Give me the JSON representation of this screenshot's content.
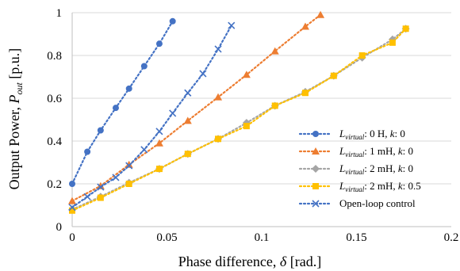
{
  "chart_data": {
    "type": "line",
    "xlabel": "Phase difference, δ [rad.]",
    "ylabel": "Output Power, Pout [p.u.]",
    "xlim": [
      0,
      0.2
    ],
    "ylim": [
      0,
      1
    ],
    "x_ticks": [
      "0",
      "0.05",
      "0.1",
      "0.15",
      "0.2"
    ],
    "y_ticks": [
      "0",
      "0.2",
      "0.4",
      "0.6",
      "0.8",
      "1"
    ],
    "x_tick_values": [
      0,
      0.05,
      0.1,
      0.15,
      0.2
    ],
    "y_tick_values": [
      0,
      0.2,
      0.4,
      0.6,
      0.8,
      1
    ],
    "grid": "horizontal",
    "legend_position": "bottom-right",
    "series": [
      {
        "name": "Lvirtual: 0 H, k: 0",
        "color": "#4472C4",
        "marker": "circle",
        "x": [
          0.0,
          0.008,
          0.015,
          0.023,
          0.03,
          0.038,
          0.046,
          0.053
        ],
        "y": [
          0.2,
          0.35,
          0.45,
          0.555,
          0.645,
          0.75,
          0.855,
          0.96
        ]
      },
      {
        "name": "Lvirtual: 1 mH, k: 0",
        "color": "#ED7D31",
        "marker": "triangle",
        "x": [
          0.0,
          0.015,
          0.03,
          0.046,
          0.061,
          0.077,
          0.092,
          0.107,
          0.123,
          0.131
        ],
        "y": [
          0.12,
          0.19,
          0.29,
          0.39,
          0.495,
          0.605,
          0.71,
          0.82,
          0.935,
          0.99
        ]
      },
      {
        "name": "Lvirtual: 2 mH, k: 0",
        "color": "#A5A5A5",
        "marker": "diamond",
        "x": [
          0.0,
          0.015,
          0.03,
          0.046,
          0.061,
          0.077,
          0.092,
          0.107,
          0.123,
          0.138,
          0.153,
          0.169,
          0.176
        ],
        "y": [
          0.08,
          0.14,
          0.205,
          0.27,
          0.34,
          0.41,
          0.485,
          0.565,
          0.63,
          0.705,
          0.79,
          0.875,
          0.925
        ]
      },
      {
        "name": "Lvirtual: 2 mH, k: 0.5",
        "color": "#FFC000",
        "marker": "square",
        "x": [
          0.0,
          0.015,
          0.03,
          0.046,
          0.061,
          0.077,
          0.092,
          0.107,
          0.123,
          0.138,
          0.153,
          0.169,
          0.176
        ],
        "y": [
          0.075,
          0.135,
          0.2,
          0.27,
          0.34,
          0.41,
          0.47,
          0.565,
          0.625,
          0.705,
          0.8,
          0.86,
          0.925
        ]
      },
      {
        "name": "Open-loop control",
        "color": "#4472C4",
        "marker": "x",
        "x": [
          0.0,
          0.008,
          0.015,
          0.023,
          0.03,
          0.038,
          0.046,
          0.053,
          0.061,
          0.069,
          0.077,
          0.084
        ],
        "y": [
          0.09,
          0.14,
          0.185,
          0.23,
          0.285,
          0.36,
          0.445,
          0.53,
          0.625,
          0.715,
          0.83,
          0.94
        ]
      }
    ]
  },
  "legend": {
    "items": [
      {
        "prefix": "L",
        "subscript": "virtual",
        "rest": ": 0 H, ",
        "k_label": "k",
        "k_rest": ": 0"
      },
      {
        "prefix": "L",
        "subscript": "virtual",
        "rest": ": 1 mH, ",
        "k_label": "k",
        "k_rest": ": 0"
      },
      {
        "prefix": "L",
        "subscript": "virtual",
        "rest": ": 2 mH, ",
        "k_label": "k",
        "k_rest": ": 0"
      },
      {
        "prefix": "L",
        "subscript": "virtual",
        "rest": ": 2 mH, ",
        "k_label": "k",
        "k_rest": ": 0.5"
      },
      {
        "plain": "Open-loop control"
      }
    ]
  },
  "axis_titles": {
    "x_main": "Phase difference, ",
    "x_symbol": "δ",
    "x_unit": " [rad.]",
    "y_main": "Output Power, ",
    "y_symbol": "P",
    "y_sub": "out",
    "y_unit": " [p.u.]"
  }
}
